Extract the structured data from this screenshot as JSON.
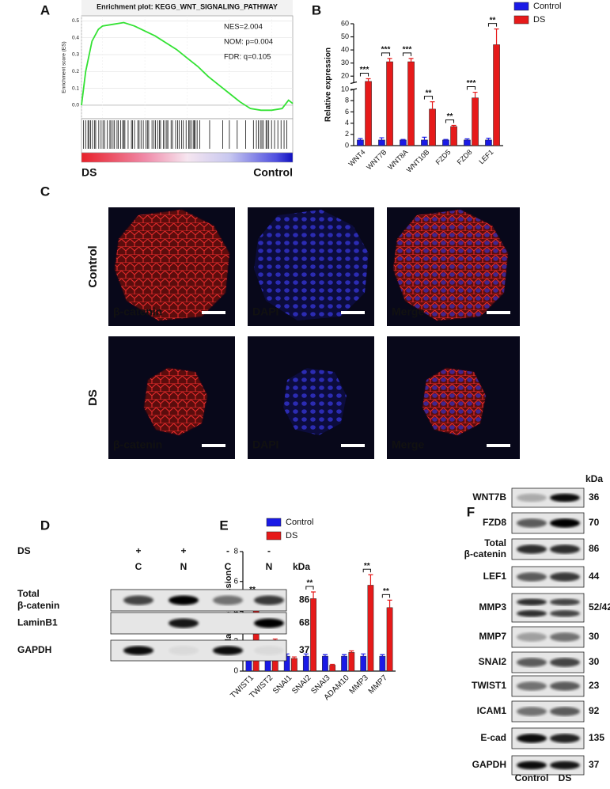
{
  "panel_labels": [
    "A",
    "B",
    "C",
    "D",
    "E",
    "F"
  ],
  "chart_data": [
    {
      "type": "line",
      "title": "Enrichment plot: KEGG_WNT_SIGNALING_PATHWAY",
      "y_label": "Enrichment score (ES)",
      "annotations": [
        "NES=2.004",
        "NOM: p=0.004",
        "FDR: q=0.105"
      ],
      "x_end_labels": [
        "DS",
        "Control"
      ],
      "x": [
        0,
        2,
        5,
        8,
        10,
        15,
        20,
        25,
        30,
        35,
        40,
        45,
        50,
        55,
        60,
        65,
        70,
        75,
        80,
        85,
        90,
        95,
        98,
        100
      ],
      "series": [
        {
          "color": "#33e233",
          "values": [
            0,
            0.2,
            0.38,
            0.45,
            0.47,
            0.48,
            0.49,
            0.47,
            0.44,
            0.41,
            0.37,
            0.33,
            0.28,
            0.23,
            0.17,
            0.12,
            0.07,
            0.02,
            -0.02,
            -0.03,
            -0.03,
            -0.02,
            0.03,
            0.01
          ]
        }
      ],
      "xlim": [
        0,
        100
      ],
      "ylim": [
        -0.08,
        0.53
      ],
      "yticks": [
        {
          "value": 0,
          "label": "0.0"
        },
        0.1,
        0.2,
        0.3,
        0.4,
        0.5
      ],
      "grid": true
    },
    {
      "type": "bar",
      "y_label": "Relative expression",
      "categories": [
        "WNT4",
        "WNT7B",
        "WNT8A",
        "WNT10B",
        "FZD5",
        "FZD8",
        "LEF1"
      ],
      "series": [
        {
          "name": "Control",
          "color": "#1a1ae6",
          "values": [
            1,
            1,
            1,
            1,
            1,
            1,
            1
          ],
          "errors": [
            0.25,
            0.4,
            0.1,
            0.5,
            0.1,
            0.2,
            0.3
          ]
        },
        {
          "name": "DS",
          "color": "#e61a1a",
          "values": [
            16,
            31,
            31,
            6.5,
            3.4,
            8.5,
            44
          ],
          "errors": [
            2,
            2.5,
            2.5,
            1.3,
            0.2,
            1,
            12
          ]
        }
      ],
      "significance": [
        "***",
        "***",
        "***",
        "**",
        "**",
        "***",
        "**"
      ],
      "ylim": [
        0,
        60
      ],
      "axis_break": [
        10,
        15
      ],
      "yticks": [
        0,
        2,
        4,
        6,
        8,
        10,
        20,
        30,
        40,
        50,
        60
      ],
      "legend": "top-right"
    },
    {
      "type": "bar",
      "y_label": "Relative expression",
      "categories": [
        "TWIST1",
        "TWIST2",
        "SNAI1",
        "SNAI2",
        "SNAI3",
        "ADAM10",
        "MMP3",
        "MMP7"
      ],
      "series": [
        {
          "name": "Control",
          "color": "#1a1ae6",
          "values": [
            1,
            1,
            1,
            1,
            1,
            1,
            1,
            1
          ],
          "errors": [
            0.15,
            0.25,
            0.15,
            0.15,
            0.1,
            0.1,
            0.15,
            0.1
          ]
        },
        {
          "name": "DS",
          "color": "#e61a1a",
          "values": [
            4.6,
            1.7,
            0.85,
            4.85,
            0.4,
            1.25,
            5.75,
            4.25
          ],
          "errors": [
            0.25,
            0.45,
            0.1,
            0.45,
            0.05,
            0.1,
            0.7,
            0.5
          ]
        }
      ],
      "significance": [
        "**",
        null,
        null,
        "**",
        null,
        null,
        "**",
        "**"
      ],
      "ylim": [
        0,
        8
      ],
      "yticks": [
        0,
        2,
        4,
        6,
        8
      ],
      "legend": "top"
    }
  ],
  "panel_C": {
    "rows": [
      "Control",
      "DS"
    ],
    "channels": [
      "β-catenin",
      "DAPI",
      "Merge"
    ]
  },
  "panel_D": {
    "treatment_label": "DS",
    "treatment": [
      "+",
      "+",
      "-",
      "-"
    ],
    "fractions": [
      "C",
      "N",
      "C",
      "N"
    ],
    "unit": "kDa",
    "rows": [
      {
        "label_lines": [
          "Total",
          "β-catenin"
        ],
        "kda": 86
      },
      {
        "label_lines": [
          "LaminB1"
        ],
        "kda": 68
      },
      {
        "label_lines": [
          "GAPDH"
        ],
        "kda": 37
      }
    ]
  },
  "panel_F": {
    "unit": "kDa",
    "lanes": [
      "Control",
      "DS"
    ],
    "rows": [
      {
        "label_lines": [
          "WNT7B"
        ],
        "kda": 36
      },
      {
        "label_lines": [
          "FZD8"
        ],
        "kda": 70
      },
      {
        "label_lines": [
          "Total",
          "β-catenin"
        ],
        "kda": 86
      },
      {
        "label_lines": [
          "LEF1"
        ],
        "kda": 44
      },
      {
        "label_lines": [
          "MMP3"
        ],
        "kda": "52/42"
      },
      {
        "label_lines": [
          "MMP7"
        ],
        "kda": 30
      },
      {
        "label_lines": [
          "SNAI2"
        ],
        "kda": 30
      },
      {
        "label_lines": [
          "TWIST1"
        ],
        "kda": 23
      },
      {
        "label_lines": [
          "ICAM1"
        ],
        "kda": 92
      },
      {
        "label_lines": [
          "E-cad"
        ],
        "kda": 135
      },
      {
        "label_lines": [
          "GAPDH"
        ],
        "kda": 37
      }
    ]
  }
}
